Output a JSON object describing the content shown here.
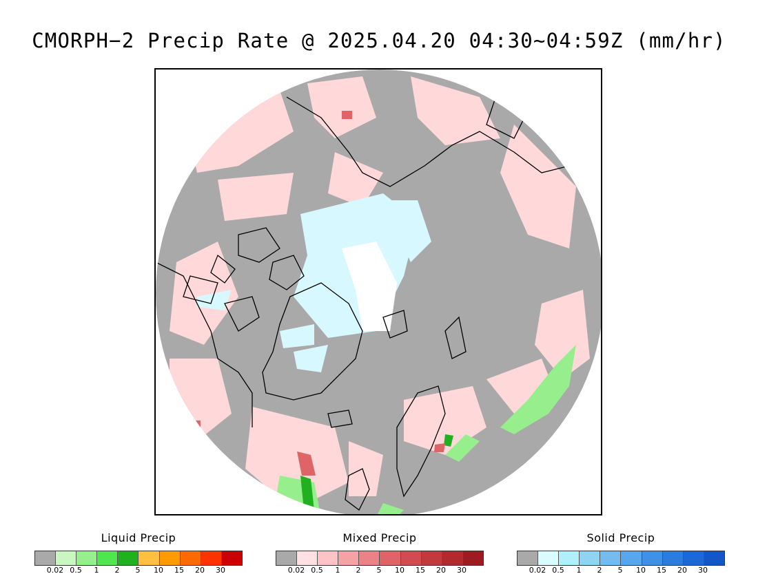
{
  "title": "CMORPH−2 Precip Rate @ 2025.04.20 04:30~04:59Z (mm/hr)",
  "map": {
    "projection": "polar stereographic (north pole)",
    "colors": {
      "no_precip": "#a9a9a9",
      "light_mixed": "#ffd9d9",
      "light_solid": "#d8f8ff",
      "snow_center": "#ffffff",
      "coastline": "#000000"
    }
  },
  "legends": [
    {
      "title": "Liquid Precip",
      "colors": [
        "#a9a9a9",
        "#c8f8c0",
        "#96ee8c",
        "#50e650",
        "#20b020",
        "#ffbf40",
        "#ff9a00",
        "#ff6a00",
        "#ff3300",
        "#cc0000"
      ],
      "ticks": [
        "0.02",
        "0.5",
        "1",
        "2",
        "5",
        "10",
        "15",
        "20",
        "30"
      ]
    },
    {
      "title": "Mixed Precip",
      "colors": [
        "#a9a9a9",
        "#ffe0e3",
        "#ffc2c6",
        "#f4a2a6",
        "#ea8286",
        "#de6468",
        "#d04c50",
        "#c03a3e",
        "#b02a2e",
        "#9c1c20"
      ],
      "ticks": [
        "0.02",
        "0.5",
        "1",
        "2",
        "5",
        "10",
        "15",
        "20",
        "30"
      ]
    },
    {
      "title": "Solid Precip",
      "colors": [
        "#a9a9a9",
        "#d8fcff",
        "#b0f0fa",
        "#90d4f4",
        "#74bcf0",
        "#58a6ec",
        "#4090e6",
        "#2c7ce0",
        "#1c68d6",
        "#1256c8"
      ],
      "ticks": [
        "0.02",
        "0.5",
        "1",
        "2",
        "5",
        "10",
        "15",
        "20",
        "30"
      ]
    }
  ]
}
